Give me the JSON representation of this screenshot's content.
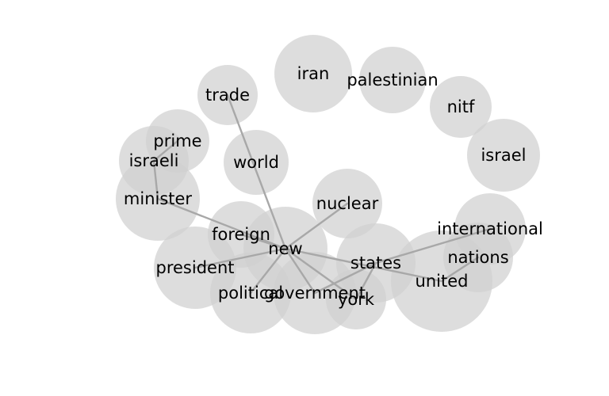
{
  "diagram": {
    "type": "word-bubble-network",
    "bubble_color": "#d0d0d0",
    "edge_color": "#a8a8a8",
    "text_color": "#000000",
    "nodes": [
      {
        "id": "iran",
        "label": "iran"
      },
      {
        "id": "palestinian",
        "label": "palestinian"
      },
      {
        "id": "trade",
        "label": "trade"
      },
      {
        "id": "nitf",
        "label": "nitf"
      },
      {
        "id": "prime",
        "label": "prime"
      },
      {
        "id": "israel",
        "label": "israel"
      },
      {
        "id": "israeli",
        "label": "israeli"
      },
      {
        "id": "world",
        "label": "world"
      },
      {
        "id": "minister",
        "label": "minister"
      },
      {
        "id": "nuclear",
        "label": "nuclear"
      },
      {
        "id": "international",
        "label": "international"
      },
      {
        "id": "foreign",
        "label": "foreign"
      },
      {
        "id": "new",
        "label": "new"
      },
      {
        "id": "nations",
        "label": "nations"
      },
      {
        "id": "president",
        "label": "president"
      },
      {
        "id": "states",
        "label": "states"
      },
      {
        "id": "united",
        "label": "united"
      },
      {
        "id": "political",
        "label": "political"
      },
      {
        "id": "government",
        "label": "government"
      },
      {
        "id": "york",
        "label": "york"
      }
    ],
    "edges": [
      [
        "trade",
        "new"
      ],
      [
        "prime",
        "israeli"
      ],
      [
        "israeli",
        "minister"
      ],
      [
        "minister",
        "new"
      ],
      [
        "nuclear",
        "new"
      ],
      [
        "foreign",
        "new"
      ],
      [
        "president",
        "new"
      ],
      [
        "political",
        "new"
      ],
      [
        "government",
        "new"
      ],
      [
        "new",
        "york"
      ],
      [
        "new",
        "united"
      ],
      [
        "states",
        "government"
      ],
      [
        "states",
        "international"
      ],
      [
        "states",
        "york"
      ],
      [
        "united",
        "nations"
      ]
    ]
  }
}
